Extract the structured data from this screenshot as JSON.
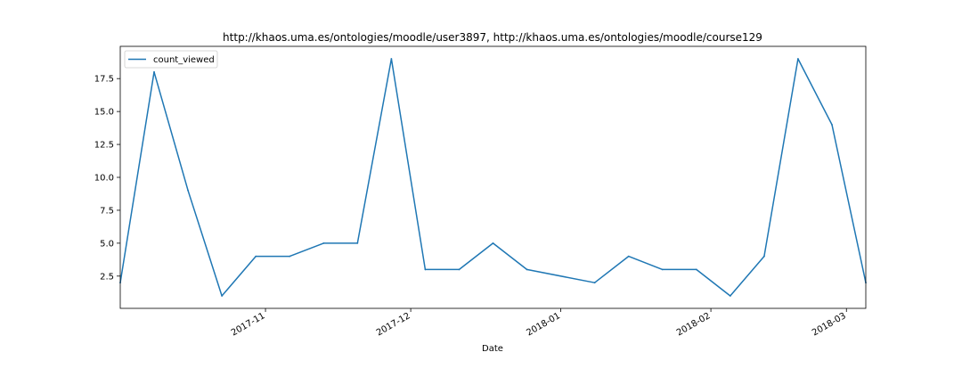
{
  "chart_data": {
    "type": "line",
    "title": "http://khaos.uma.es/ontologies/moodle/user3897, http://khaos.uma.es/ontologies/moodle/course129",
    "xlabel": "Date",
    "ylabel": "",
    "legend_position": "top-left",
    "grid": false,
    "x_range": [
      "2017-10-02",
      "2018-03-05"
    ],
    "ylim": [
      0.05,
      19.95
    ],
    "y_ticks": [
      2.5,
      5.0,
      7.5,
      10.0,
      12.5,
      15.0,
      17.5
    ],
    "y_tick_labels": [
      "2.5",
      "5.0",
      "7.5",
      "10.0",
      "12.5",
      "15.0",
      "17.5"
    ],
    "x_ticks": [
      "2017-11-01",
      "2017-12-01",
      "2018-01-01",
      "2018-02-01",
      "2018-03-01"
    ],
    "x_tick_labels": [
      "2017-11",
      "2017-12",
      "2018-01",
      "2018-02",
      "2018-03"
    ],
    "series": [
      {
        "name": "count_viewed",
        "color": "#1f77b4",
        "x": [
          "2017-10-02",
          "2017-10-09",
          "2017-10-16",
          "2017-10-23",
          "2017-10-30",
          "2017-11-06",
          "2017-11-13",
          "2017-11-20",
          "2017-11-27",
          "2017-12-04",
          "2017-12-11",
          "2017-12-18",
          "2017-12-25",
          "2018-01-08",
          "2018-01-15",
          "2018-01-22",
          "2018-01-29",
          "2018-02-05",
          "2018-02-12",
          "2018-02-19",
          "2018-02-26",
          "2018-03-05"
        ],
        "values": [
          2,
          18,
          9,
          1,
          4,
          4,
          5,
          5,
          19,
          3,
          3,
          5,
          3,
          2,
          4,
          3,
          3,
          1,
          4,
          19,
          14,
          2
        ]
      }
    ]
  }
}
